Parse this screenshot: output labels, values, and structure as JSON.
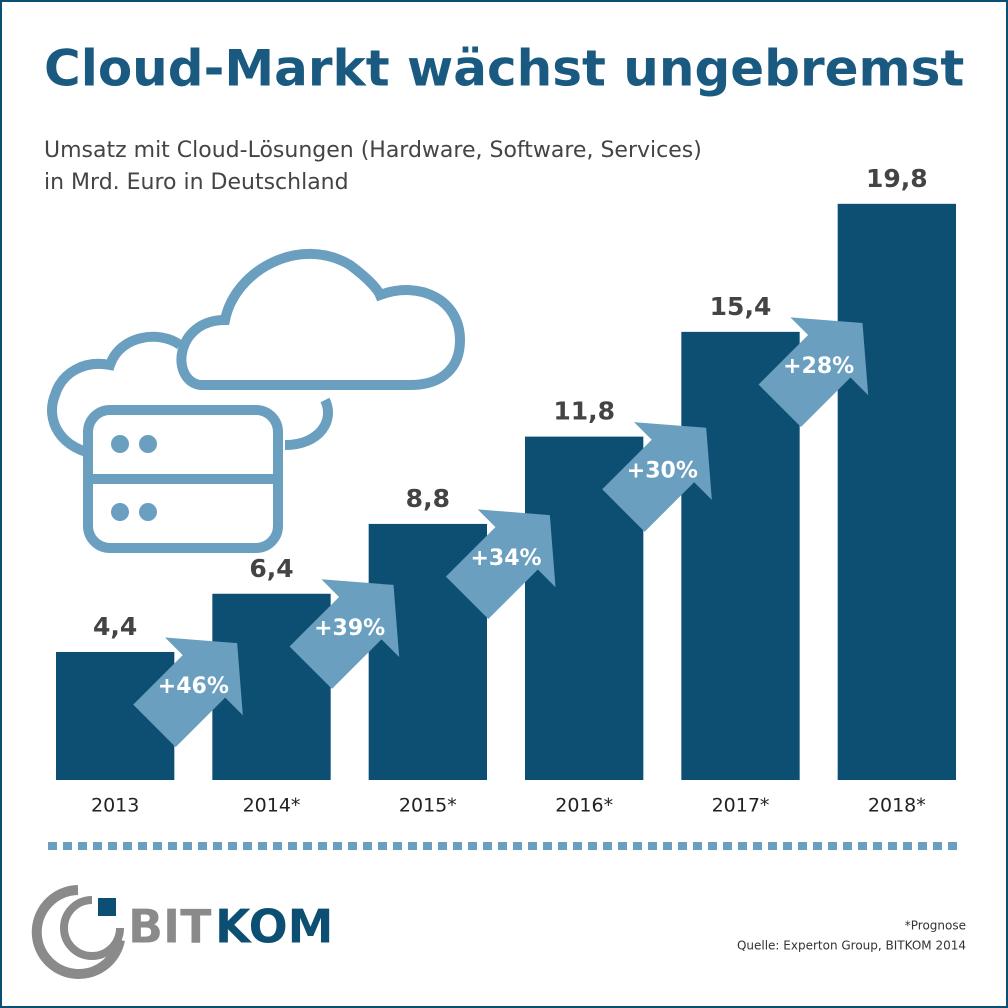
{
  "chart_data": {
    "type": "bar",
    "title": "Cloud-Markt wächst ungebremst",
    "subtitle": [
      "Umsatz mit Cloud-Lösungen (Hardware, Software, Services)",
      "in Mrd. Euro in Deutschland"
    ],
    "categories": [
      "2013",
      "2014*",
      "2015*",
      "2016*",
      "2017*",
      "2018*"
    ],
    "values": [
      4.4,
      6.4,
      8.8,
      11.8,
      15.4,
      19.8
    ],
    "value_labels": [
      "4,4",
      "6,4",
      "8,8",
      "11,8",
      "15,4",
      "19,8"
    ],
    "color": "#0d4f72",
    "ylim": [
      0,
      20
    ],
    "growth_labels": [
      "+46%",
      "+39%",
      "+34%",
      "+30%",
      "+28%"
    ],
    "growth_color": "#6a9fbf"
  },
  "logo": [
    "BIT",
    "KOM"
  ],
  "footnote": "*Prognose",
  "source": "Quelle: Experton Group, BITKOM 2014"
}
